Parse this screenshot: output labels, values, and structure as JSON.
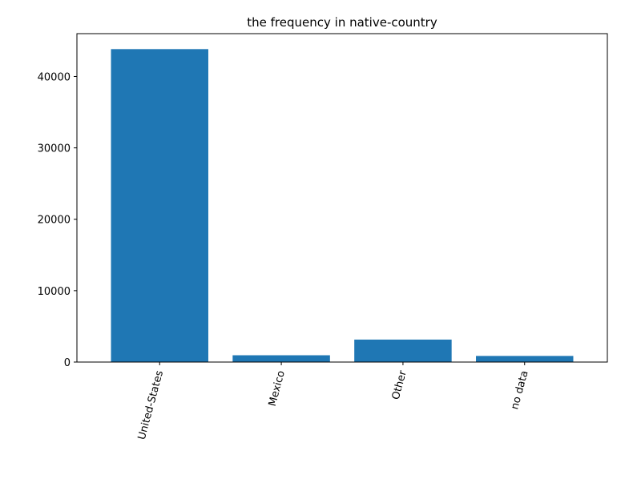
{
  "chart_data": {
    "type": "bar",
    "title": "the frequency in native-country",
    "xlabel": "",
    "ylabel": "",
    "categories": [
      "United-States",
      "Mexico",
      "Other",
      "no data"
    ],
    "values": [
      43832,
      951,
      3146,
      857
    ],
    "ylim": [
      0,
      46000
    ],
    "yticks": [
      0,
      10000,
      20000,
      30000,
      40000
    ],
    "ytick_labels": [
      "0",
      "10000",
      "20000",
      "30000",
      "40000"
    ],
    "xtick_rotation_deg": 75,
    "bar_color": "#1f77b4",
    "grid": false
  }
}
